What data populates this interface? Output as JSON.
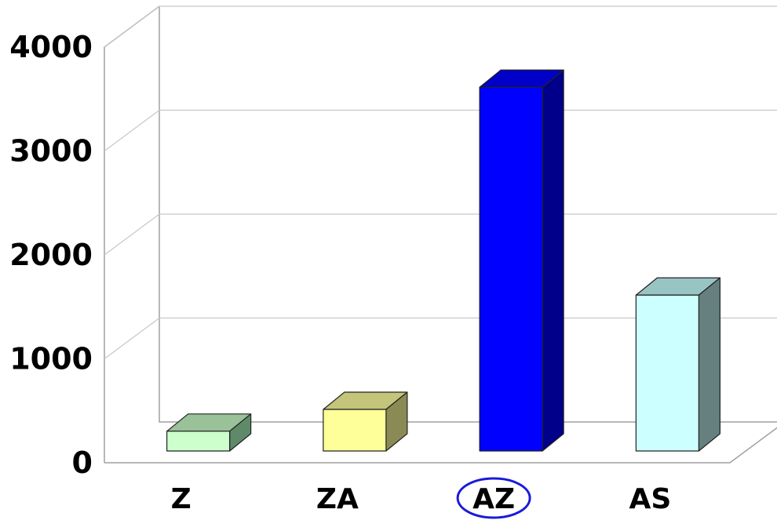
{
  "chart_data": {
    "type": "bar",
    "categories": [
      "Z",
      "ZA",
      "AZ",
      "AS"
    ],
    "values": [
      190,
      400,
      3500,
      1500
    ],
    "highlighted_category": "AZ",
    "highlight_color": "#1a1adb",
    "ylim": [
      0,
      4000
    ],
    "yticks": [
      "0",
      "1000",
      "2000",
      "3000",
      "4000"
    ],
    "grid": true,
    "colors": [
      {
        "front": "#ccffcc",
        "top": "#99c299",
        "side": "#5f8a6a"
      },
      {
        "front": "#ffff99",
        "top": "#c4c47a",
        "side": "#8a8a55"
      },
      {
        "front": "#0000ff",
        "top": "#0000c8",
        "side": "#00008a"
      },
      {
        "front": "#ccffff",
        "top": "#99c4c4",
        "side": "#668080"
      }
    ],
    "title": "",
    "xlabel": "",
    "ylabel": ""
  }
}
